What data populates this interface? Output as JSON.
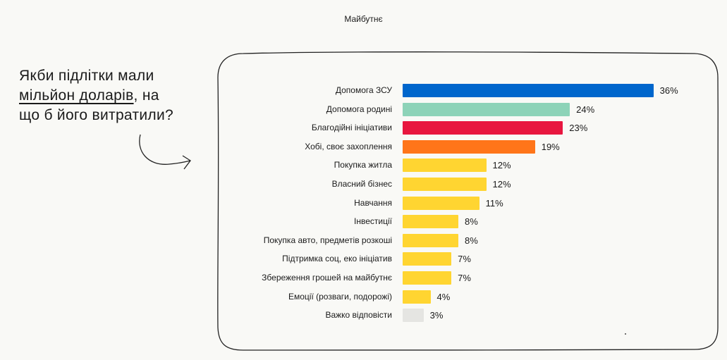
{
  "header": {
    "title": "Майбутнє"
  },
  "question": {
    "line1": "Якби підлітки мали",
    "line2_underlined": "мільйон доларів",
    "line2_rest": ", на",
    "line3": "що б його витратили?"
  },
  "chart_data": {
    "type": "bar",
    "orientation": "horizontal",
    "categories": [
      "Допомога ЗСУ",
      "Допомога родині",
      "Благодійні ініціативи",
      "Хобі, своє захоплення",
      "Покупка житла",
      "Власний бізнес",
      "Навчання",
      "Інвестиції",
      "Покупка авто, предметів розкоші",
      "Підтримка соц, еко ініціатив",
      "Збереження грошей на майбутнє",
      "Емоції (розваги, подорожі)",
      "Важко відповісти"
    ],
    "values": [
      36,
      24,
      23,
      19,
      12,
      12,
      11,
      8,
      8,
      7,
      7,
      4,
      3
    ],
    "value_labels": [
      "36%",
      "24%",
      "23%",
      "19%",
      "12%",
      "12%",
      "11%",
      "8%",
      "8%",
      "7%",
      "7%",
      "4%",
      "3%"
    ],
    "colors": [
      "#0066cc",
      "#8dd3b8",
      "#e8163f",
      "#ff7519",
      "#ffd531",
      "#ffd531",
      "#ffd531",
      "#ffd531",
      "#ffd531",
      "#ffd531",
      "#ffd531",
      "#ffd531",
      "#e5e5e2"
    ],
    "unit": "%",
    "grid": false,
    "legend": "none"
  }
}
